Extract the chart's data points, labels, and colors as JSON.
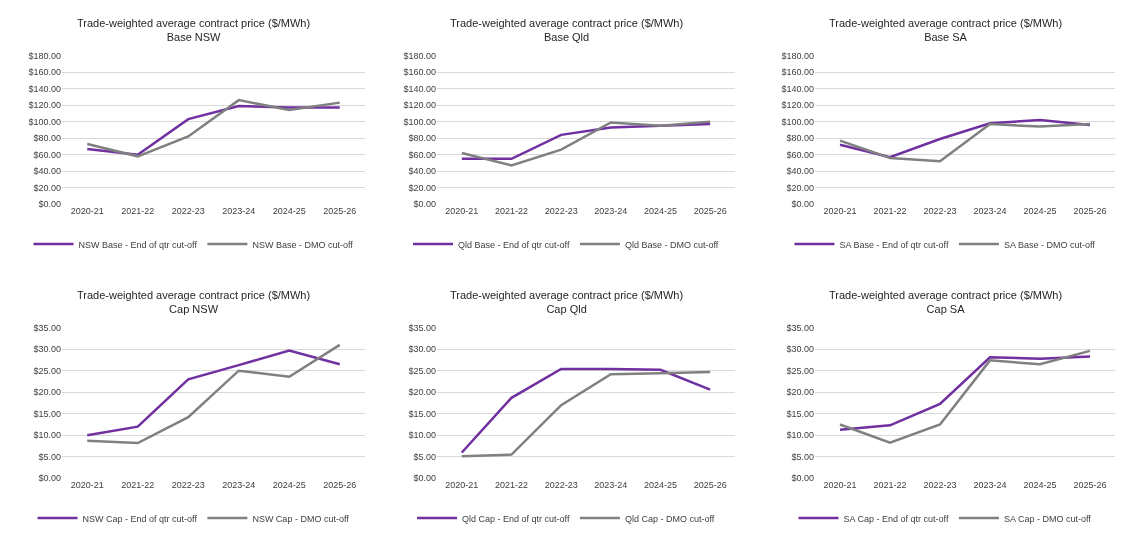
{
  "chart_data": [
    {
      "type": "line",
      "title": "Trade-weighted average contract price ($/MWh)",
      "subtitle": "Base NSW",
      "categories": [
        "2020-21",
        "2021-22",
        "2022-23",
        "2023-24",
        "2024-25",
        "2025-26"
      ],
      "series": [
        {
          "name": "NSW Base - End of qtr cut-off",
          "color": "#7030a0",
          "values": [
            67,
            60,
            103,
            119,
            117,
            117
          ]
        },
        {
          "name": "NSW Base - DMO cut-off",
          "color": "#808080",
          "values": [
            73,
            58,
            82,
            126,
            114,
            123
          ]
        }
      ],
      "ylim": [
        0,
        180
      ],
      "yticks": [
        {
          "value": 0,
          "label": "$0.00"
        },
        {
          "value": 20,
          "label": "$20.00"
        },
        {
          "value": 40,
          "label": "$40.00"
        },
        {
          "value": 60,
          "label": "$60.00"
        },
        {
          "value": 80,
          "label": "$80.00"
        },
        {
          "value": 100,
          "label": "$100.00"
        },
        {
          "value": 120,
          "label": "$120.00"
        },
        {
          "value": 140,
          "label": "$140.00"
        },
        {
          "value": 160,
          "label": "$160.00"
        },
        {
          "value": 180,
          "label": "$180.00"
        }
      ],
      "grid": "y",
      "legend": "bottom",
      "marker": "none",
      "line_style": "solid"
    },
    {
      "type": "line",
      "title": "Trade-weighted average contract price ($/MWh)",
      "subtitle": "Base Qld",
      "categories": [
        "2020-21",
        "2021-22",
        "2022-23",
        "2023-24",
        "2024-25",
        "2025-26"
      ],
      "series": [
        {
          "name": "Qld Base - End of qtr cut-off",
          "color": "#7030a0",
          "values": [
            55,
            55,
            84,
            93,
            95,
            97
          ]
        },
        {
          "name": "Qld Base - DMO cut-off",
          "color": "#808080",
          "values": [
            62,
            47,
            66,
            99,
            95,
            100
          ]
        }
      ],
      "ylim": [
        0,
        180
      ],
      "yticks": [
        {
          "value": 0,
          "label": "$0.00"
        },
        {
          "value": 20,
          "label": "$20.00"
        },
        {
          "value": 40,
          "label": "$40.00"
        },
        {
          "value": 60,
          "label": "$60.00"
        },
        {
          "value": 80,
          "label": "$80.00"
        },
        {
          "value": 100,
          "label": "$100.00"
        },
        {
          "value": 120,
          "label": "$120.00"
        },
        {
          "value": 140,
          "label": "$140.00"
        },
        {
          "value": 160,
          "label": "$160.00"
        },
        {
          "value": 180,
          "label": "$180.00"
        }
      ],
      "grid": "y",
      "legend": "bottom",
      "marker": "none",
      "line_style": "solid"
    },
    {
      "type": "line",
      "title": "Trade-weighted average contract price ($/MWh)",
      "subtitle": "Base SA",
      "categories": [
        "2020-21",
        "2021-22",
        "2022-23",
        "2023-24",
        "2024-25",
        "2025-26"
      ],
      "series": [
        {
          "name": "SA Base - End of qtr cut-off",
          "color": "#7030a0",
          "values": [
            72,
            57,
            79,
            98,
            102,
            96
          ]
        },
        {
          "name": "SA Base - DMO cut-off",
          "color": "#808080",
          "values": [
            77,
            56,
            52,
            97,
            94,
            97
          ]
        }
      ],
      "ylim": [
        0,
        180
      ],
      "yticks": [
        {
          "value": 0,
          "label": "$0.00"
        },
        {
          "value": 20,
          "label": "$20.00"
        },
        {
          "value": 40,
          "label": "$40.00"
        },
        {
          "value": 60,
          "label": "$60.00"
        },
        {
          "value": 80,
          "label": "$80.00"
        },
        {
          "value": 100,
          "label": "$100.00"
        },
        {
          "value": 120,
          "label": "$120.00"
        },
        {
          "value": 140,
          "label": "$140.00"
        },
        {
          "value": 160,
          "label": "$160.00"
        },
        {
          "value": 180,
          "label": "$180.00"
        }
      ],
      "grid": "y",
      "legend": "bottom",
      "marker": "none",
      "line_style": "solid"
    },
    {
      "type": "line",
      "title": "Trade-weighted average contract price ($/MWh)",
      "subtitle": "Cap NSW",
      "categories": [
        "2020-21",
        "2021-22",
        "2022-23",
        "2023-24",
        "2024-25",
        "2025-26"
      ],
      "series": [
        {
          "name": "NSW Cap - End of qtr cut-off",
          "color": "#7030a0",
          "values": [
            10,
            12,
            23,
            26.3,
            29.7,
            26.5
          ]
        },
        {
          "name": "NSW Cap - DMO cut-off",
          "color": "#808080",
          "values": [
            8.7,
            8.2,
            14.2,
            25,
            23.6,
            31
          ]
        }
      ],
      "ylim": [
        0,
        35
      ],
      "yticks": [
        {
          "value": 0,
          "label": "$0.00"
        },
        {
          "value": 5,
          "label": "$5.00"
        },
        {
          "value": 10,
          "label": "$10.00"
        },
        {
          "value": 15,
          "label": "$15.00"
        },
        {
          "value": 20,
          "label": "$20.00"
        },
        {
          "value": 25,
          "label": "$25.00"
        },
        {
          "value": 30,
          "label": "$30.00"
        },
        {
          "value": 35,
          "label": "$35.00"
        }
      ],
      "grid": "y",
      "legend": "bottom",
      "marker": "none",
      "line_style": "solid"
    },
    {
      "type": "line",
      "title": "Trade-weighted average contract price ($/MWh)",
      "subtitle": "Cap Qld",
      "categories": [
        "2020-21",
        "2021-22",
        "2022-23",
        "2023-24",
        "2024-25",
        "2025-26"
      ],
      "series": [
        {
          "name": "Qld Cap - End of qtr cut-off",
          "color": "#7030a0",
          "values": [
            6,
            18.7,
            25.4,
            25.4,
            25.2,
            20.6
          ]
        },
        {
          "name": "Qld Cap - DMO cut-off",
          "color": "#808080",
          "values": [
            5.1,
            5.5,
            17,
            24.2,
            24.4,
            24.7
          ]
        }
      ],
      "ylim": [
        0,
        35
      ],
      "yticks": [
        {
          "value": 0,
          "label": "$0.00"
        },
        {
          "value": 5,
          "label": "$5.00"
        },
        {
          "value": 10,
          "label": "$10.00"
        },
        {
          "value": 15,
          "label": "$15.00"
        },
        {
          "value": 20,
          "label": "$20.00"
        },
        {
          "value": 25,
          "label": "$25.00"
        },
        {
          "value": 30,
          "label": "$30.00"
        },
        {
          "value": 35,
          "label": "$35.00"
        }
      ],
      "grid": "y",
      "legend": "bottom",
      "marker": "none",
      "line_style": "solid"
    },
    {
      "type": "line",
      "title": "Trade-weighted average contract price ($/MWh)",
      "subtitle": "Cap SA",
      "categories": [
        "2020-21",
        "2021-22",
        "2022-23",
        "2023-24",
        "2024-25",
        "2025-26"
      ],
      "series": [
        {
          "name": "SA Cap - End of qtr cut-off",
          "color": "#7030a0",
          "values": [
            11.3,
            12.3,
            17.3,
            28.1,
            27.8,
            28.3
          ]
        },
        {
          "name": "SA Cap - DMO cut-off",
          "color": "#808080",
          "values": [
            12.5,
            8.3,
            12.5,
            27.4,
            26.5,
            29.6
          ]
        }
      ],
      "ylim": [
        0,
        35
      ],
      "yticks": [
        {
          "value": 0,
          "label": "$0.00"
        },
        {
          "value": 5,
          "label": "$5.00"
        },
        {
          "value": 10,
          "label": "$10.00"
        },
        {
          "value": 15,
          "label": "$15.00"
        },
        {
          "value": 20,
          "label": "$20.00"
        },
        {
          "value": 25,
          "label": "$25.00"
        },
        {
          "value": 30,
          "label": "$30.00"
        },
        {
          "value": 35,
          "label": "$35.00"
        }
      ],
      "grid": "y",
      "legend": "bottom",
      "marker": "none",
      "line_style": "solid"
    }
  ]
}
